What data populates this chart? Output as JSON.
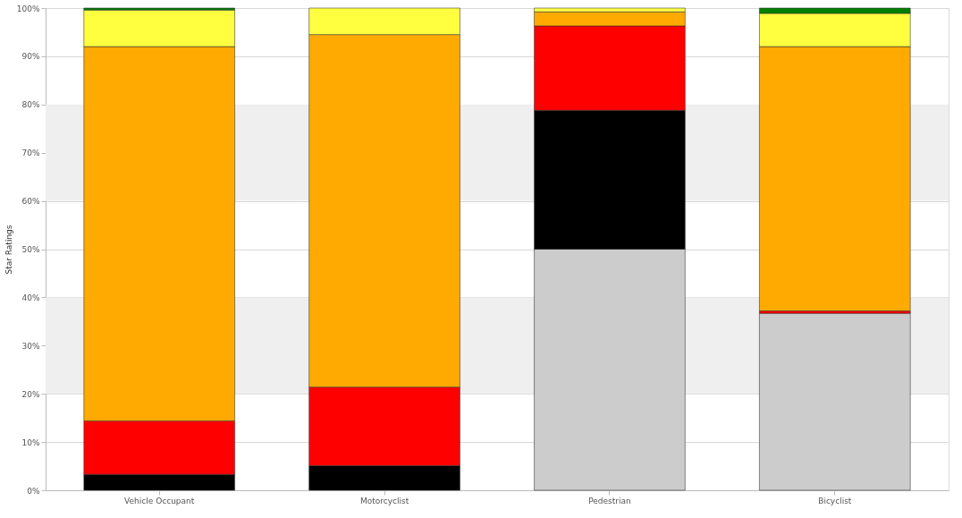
{
  "chart_data": {
    "type": "bar",
    "stacked": true,
    "ylabel": "Star Ratings",
    "categories": [
      "Vehicle Occupant",
      "Motorcyclist",
      "Pedestrian",
      "Bicyclist"
    ],
    "series": [
      {
        "color": "#cccccc",
        "values": [
          null,
          null,
          50,
          36.7
        ]
      },
      {
        "color": "#000000",
        "values": [
          3.3,
          5.1,
          28.8,
          null
        ]
      },
      {
        "color": "#ff0000",
        "values": [
          11.1,
          16.3,
          17.5,
          0.5
        ]
      },
      {
        "color": "#ffaa00",
        "values": [
          77.6,
          73.1,
          2.9,
          54.8
        ]
      },
      {
        "color": "#ffff40",
        "values": [
          7.6,
          5.5,
          0.8,
          6.9
        ]
      },
      {
        "color": "#008000",
        "values": [
          0.4,
          null,
          null,
          1.1
        ]
      }
    ],
    "ylim": [
      0,
      100
    ],
    "yticks": [
      {
        "value": 0,
        "label": "0%"
      },
      {
        "value": 10,
        "label": "10%"
      },
      {
        "value": 20,
        "label": "20%"
      },
      {
        "value": 30,
        "label": "30%"
      },
      {
        "value": 40,
        "label": "40%"
      },
      {
        "value": 50,
        "label": "50%"
      },
      {
        "value": 60,
        "label": "60%"
      },
      {
        "value": 70,
        "label": "70%"
      },
      {
        "value": 80,
        "label": "80%"
      },
      {
        "value": 90,
        "label": "90%"
      },
      {
        "value": 100,
        "label": "100%"
      }
    ],
    "bands": [
      {
        "axis": "y",
        "from": 20,
        "to": 40,
        "color": "#efefef"
      },
      {
        "axis": "y",
        "from": 60,
        "to": 80,
        "color": "#efefef"
      }
    ],
    "grid": "y"
  }
}
